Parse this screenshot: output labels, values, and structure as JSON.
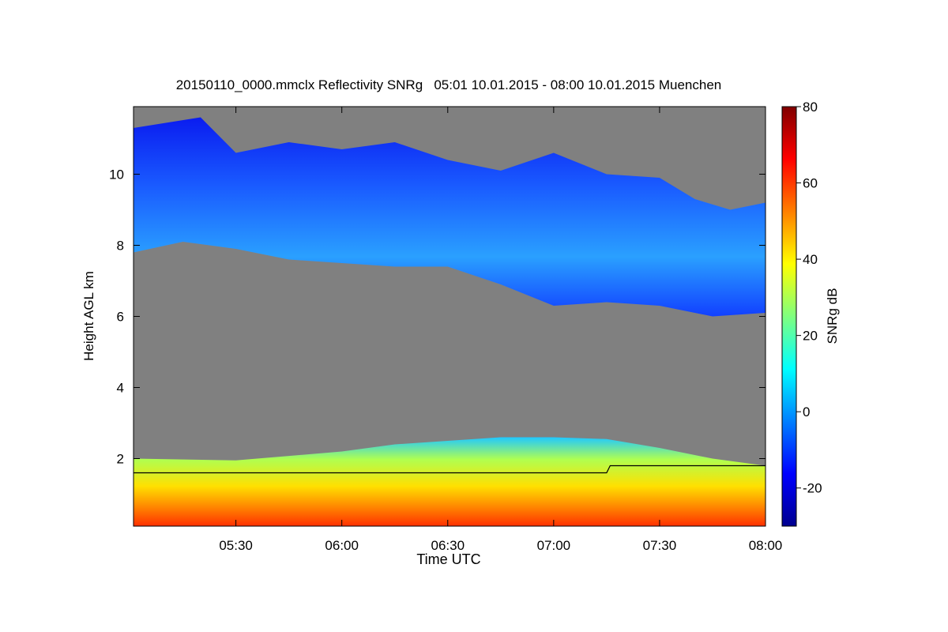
{
  "chart_data": {
    "type": "heatmap",
    "title": "20150110_0000.mmclx Reflectivity SNRg   05:01 10.01.2015 - 08:00 10.01.2015 Muenchen",
    "xlabel": "Time UTC",
    "ylabel": "Height AGL km",
    "colorbar_label": "SNRg dB",
    "xlim": [
      "05:01",
      "08:00"
    ],
    "xticks": [
      "05:30",
      "06:00",
      "06:30",
      "07:00",
      "07:30",
      "08:00"
    ],
    "ylim": [
      0.1,
      11.9
    ],
    "yticks": [
      2,
      4,
      6,
      8,
      10
    ],
    "colorbar_range": [
      -30,
      80
    ],
    "colorbar_ticks": [
      -20,
      0,
      20,
      40,
      60,
      80
    ],
    "colormap": "jet",
    "background_color": "#808080",
    "cloud_top_km": [
      [
        "05:01",
        11.3
      ],
      [
        "05:20",
        11.6
      ],
      [
        "05:30",
        10.6
      ],
      [
        "05:45",
        10.9
      ],
      [
        "06:00",
        10.7
      ],
      [
        "06:15",
        10.9
      ],
      [
        "06:30",
        10.4
      ],
      [
        "06:45",
        10.1
      ],
      [
        "07:00",
        10.6
      ],
      [
        "07:15",
        10.0
      ],
      [
        "07:30",
        9.9
      ],
      [
        "07:40",
        9.3
      ],
      [
        "07:50",
        9.0
      ],
      [
        "08:00",
        9.2
      ]
    ],
    "cloud_base_km": [
      [
        "05:01",
        7.8
      ],
      [
        "05:15",
        8.1
      ],
      [
        "05:30",
        7.9
      ],
      [
        "05:45",
        7.6
      ],
      [
        "06:00",
        7.5
      ],
      [
        "06:15",
        7.4
      ],
      [
        "06:30",
        7.4
      ],
      [
        "06:45",
        6.9
      ],
      [
        "07:00",
        6.3
      ],
      [
        "07:15",
        6.4
      ],
      [
        "07:30",
        6.3
      ],
      [
        "07:45",
        6.0
      ],
      [
        "08:00",
        6.1
      ]
    ],
    "boundary_layer_top_km": [
      [
        "05:01",
        2.0
      ],
      [
        "05:30",
        1.95
      ],
      [
        "06:00",
        2.2
      ],
      [
        "06:15",
        2.4
      ],
      [
        "06:30",
        2.5
      ],
      [
        "06:45",
        2.6
      ],
      [
        "07:00",
        2.6
      ],
      [
        "07:15",
        2.55
      ],
      [
        "07:30",
        2.3
      ],
      [
        "07:45",
        2.0
      ],
      [
        "08:00",
        1.8
      ]
    ],
    "black_line_km": [
      [
        "05:01",
        1.6
      ],
      [
        "07:15",
        1.6
      ],
      [
        "07:16",
        1.8
      ],
      [
        "08:00",
        1.8
      ]
    ]
  }
}
